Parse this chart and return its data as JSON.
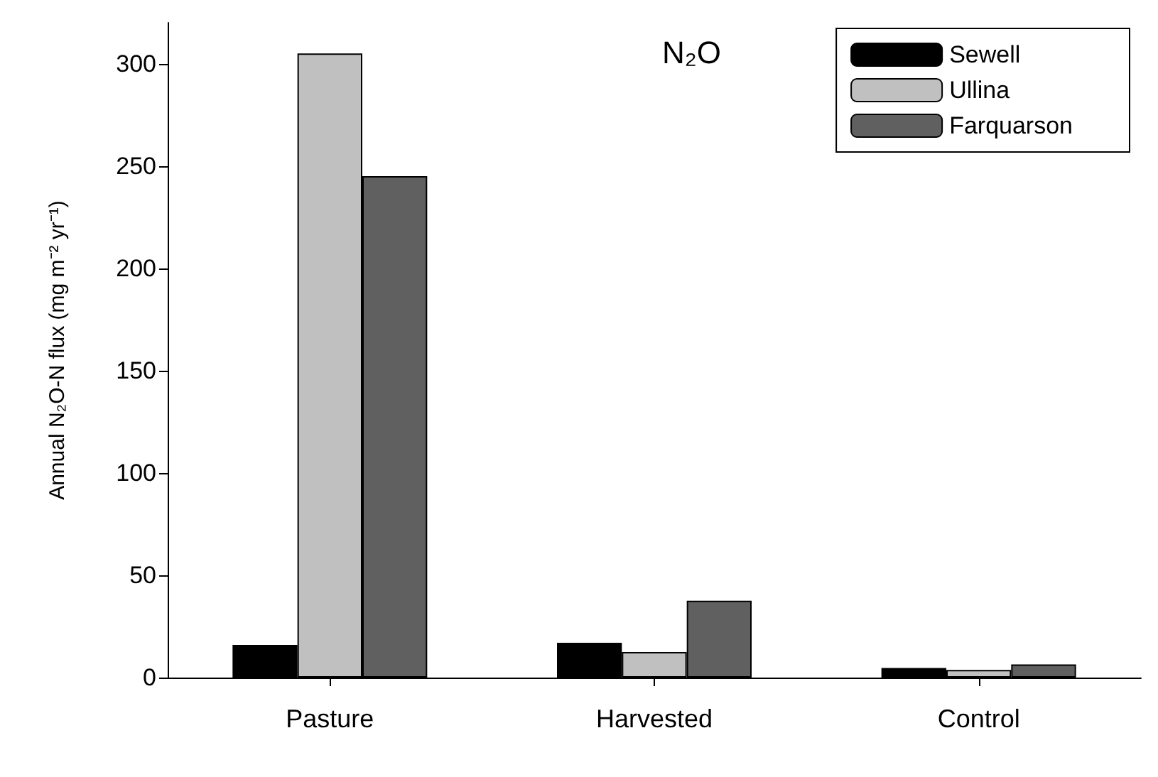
{
  "chart_data": {
    "type": "bar",
    "ylabel": "Annual N₂O-N flux (mg m⁻² yr⁻¹)",
    "annotations": [
      "N₂O"
    ],
    "categories": [
      "Pasture",
      "Harvested",
      "Control"
    ],
    "series": [
      {
        "name": "Sewell",
        "color": "#000000",
        "values": [
          16,
          17,
          4.7
        ]
      },
      {
        "name": "Ullina",
        "color": "#c0c0c0",
        "values": [
          305,
          12.5,
          3.7
        ]
      },
      {
        "name": "Farquarson",
        "color": "#606060",
        "values": [
          245,
          37.6,
          6.4
        ]
      }
    ],
    "ylim": [
      0,
      320
    ],
    "yticks": [
      0,
      50,
      100,
      150,
      200,
      250,
      300
    ],
    "grid": false,
    "legend": "top right"
  }
}
